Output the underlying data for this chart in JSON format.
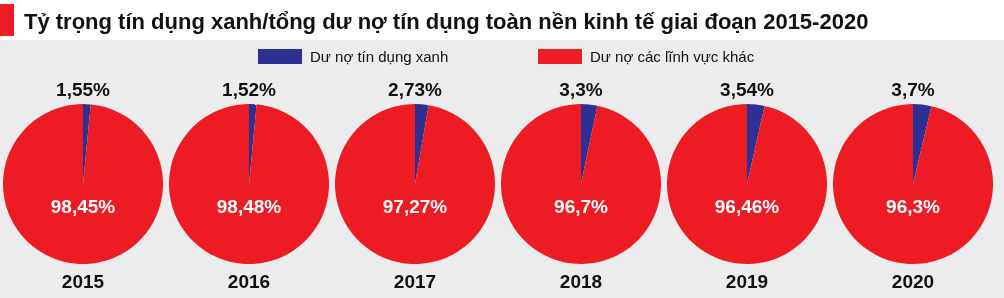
{
  "chart_data": [
    {
      "type": "pie",
      "title": "Tỷ trọng tín dụng xanh/tổng dư nợ tín dụng toàn nền kinh tế giai đoạn 2015-2020",
      "legend": "top",
      "xlabel": "2015",
      "categories": [
        "Dư nợ tín dụng xanh",
        "Dư nợ các lĩnh vực khác"
      ],
      "values": [
        1.55,
        98.45
      ],
      "value_labels": [
        "1,55%",
        "98,45%"
      ],
      "colors": [
        "#2e3192",
        "#ed1c24"
      ]
    },
    {
      "type": "pie",
      "xlabel": "2016",
      "categories": [
        null,
        null
      ],
      "values": [
        1.52,
        98.48
      ],
      "value_labels": [
        "1,52%",
        "98,48%"
      ],
      "colors": [
        "#2e3192",
        "#ed1c24"
      ]
    },
    {
      "type": "pie",
      "xlabel": "2017",
      "categories": [
        null,
        null
      ],
      "values": [
        2.73,
        97.27
      ],
      "value_labels": [
        "2,73%",
        "97,27%"
      ],
      "colors": [
        "#2e3192",
        "#ed1c24"
      ]
    },
    {
      "type": "pie",
      "xlabel": "2018",
      "categories": [
        null,
        null
      ],
      "values": [
        3.3,
        96.7
      ],
      "value_labels": [
        "3,3%",
        "96,7%"
      ],
      "colors": [
        "#2e3192",
        "#ed1c24"
      ]
    },
    {
      "type": "pie",
      "xlabel": "2019",
      "categories": [
        null,
        null
      ],
      "values": [
        3.54,
        96.46
      ],
      "value_labels": [
        "3,54%",
        "96,46%"
      ],
      "colors": [
        "#2e3192",
        "#ed1c24"
      ]
    },
    {
      "type": "pie",
      "xlabel": "2020",
      "categories": [
        null,
        null
      ],
      "values": [
        3.7,
        96.3
      ],
      "value_labels": [
        "3,7%",
        "96,3%"
      ],
      "colors": [
        "#2e3192",
        "#ed1c24"
      ]
    }
  ]
}
